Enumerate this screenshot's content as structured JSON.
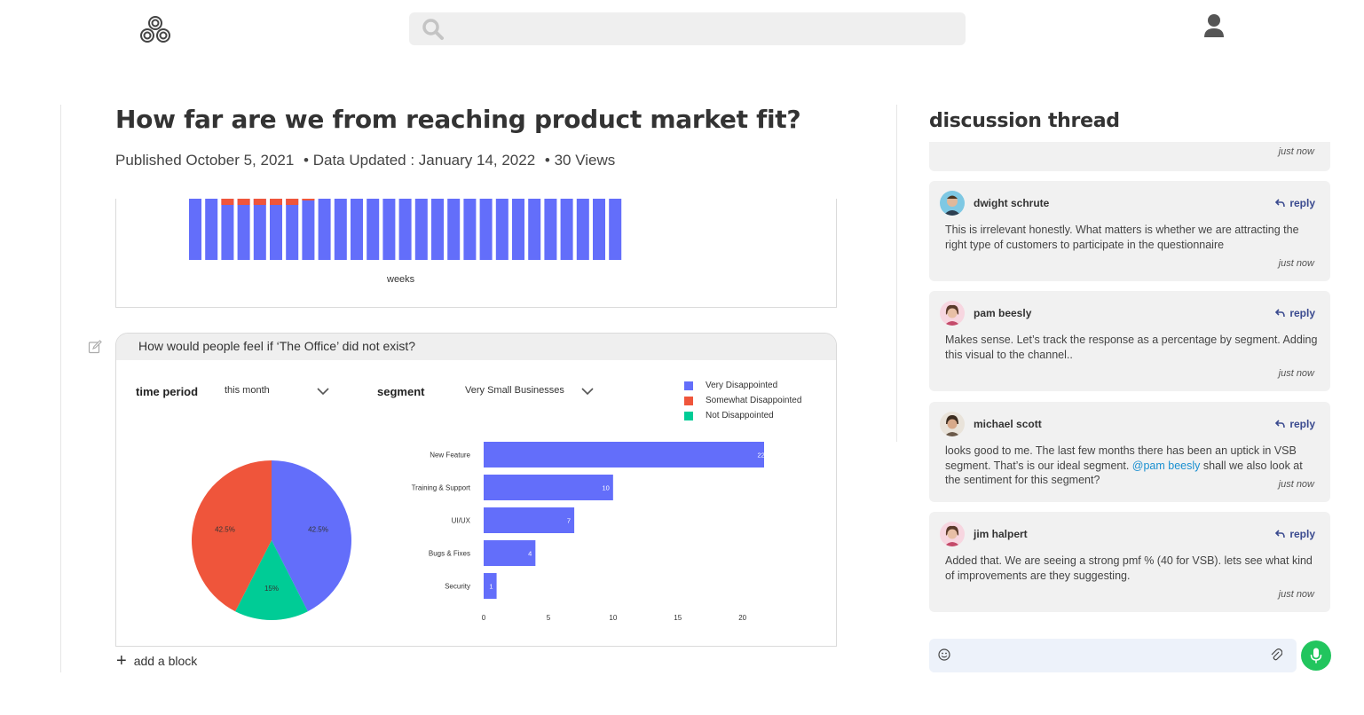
{
  "search": {
    "placeholder": ""
  },
  "page": {
    "title": "How far are we from reaching product market fit?",
    "published": "Published October 5, 2021",
    "updated": "• Data Updated : January 14, 2022",
    "views": "• 30 Views"
  },
  "chart_top": {
    "xlabel": "weeks"
  },
  "block": {
    "question": "How would people feel if ‘The Office’ did not exist?",
    "time_period_label": "time period",
    "time_period_value": "this month",
    "segment_label": "segment",
    "segment_value": "Very Small Businesses",
    "add_block": "add a block"
  },
  "colors": {
    "very": "#636efa",
    "somewhat": "#ef553b",
    "not": "#00cc96",
    "accent": "#3a4a8f",
    "mic": "#22c55e"
  },
  "chart_data": [
    {
      "type": "pie",
      "legend": [
        "Very Disappointed",
        "Somewhat Disappointed",
        "Not Disappointed"
      ],
      "values": [
        42.5,
        42.5,
        15
      ],
      "labels": [
        "42.5%",
        "42.5%",
        "15%"
      ],
      "legend_position": "top-right"
    },
    {
      "type": "bar",
      "orientation": "horizontal",
      "categories": [
        "New Feature",
        "Training & Support",
        "UI/UX",
        "Bugs & Fixes",
        "Security"
      ],
      "values": [
        22,
        10,
        7,
        4,
        1
      ],
      "xticks": [
        0,
        5,
        10,
        15,
        20
      ],
      "xlim": [
        0,
        24
      ]
    }
  ],
  "discussion": {
    "title": "discussion thread",
    "partial_time": "just now",
    "reply_label": "reply",
    "comments": [
      {
        "name": "dwight schrute",
        "text": "This is irrelevant honestly. What matters is whether we are attracting the right type of customers to participate in the questionnaire",
        "time": "just now"
      },
      {
        "name": "pam beesly",
        "text": "Makes sense. Let’s track the response as a percentage by segment. Adding this visual to the channel..",
        "time": "just now"
      },
      {
        "name": "michael scott",
        "text_before": "looks good to me. The last few months there has been an uptick in VSB segment. That’s is our ideal segment. ",
        "mention": "@pam beesly",
        "text_after": " shall we also look at the sentiment for this segment?",
        "time": "just now"
      },
      {
        "name": "jim halpert",
        "text": "Added that. We are seeing a strong pmf % (40 for VSB). lets see what kind of improvements are they suggesting.",
        "time": "just now"
      }
    ]
  }
}
